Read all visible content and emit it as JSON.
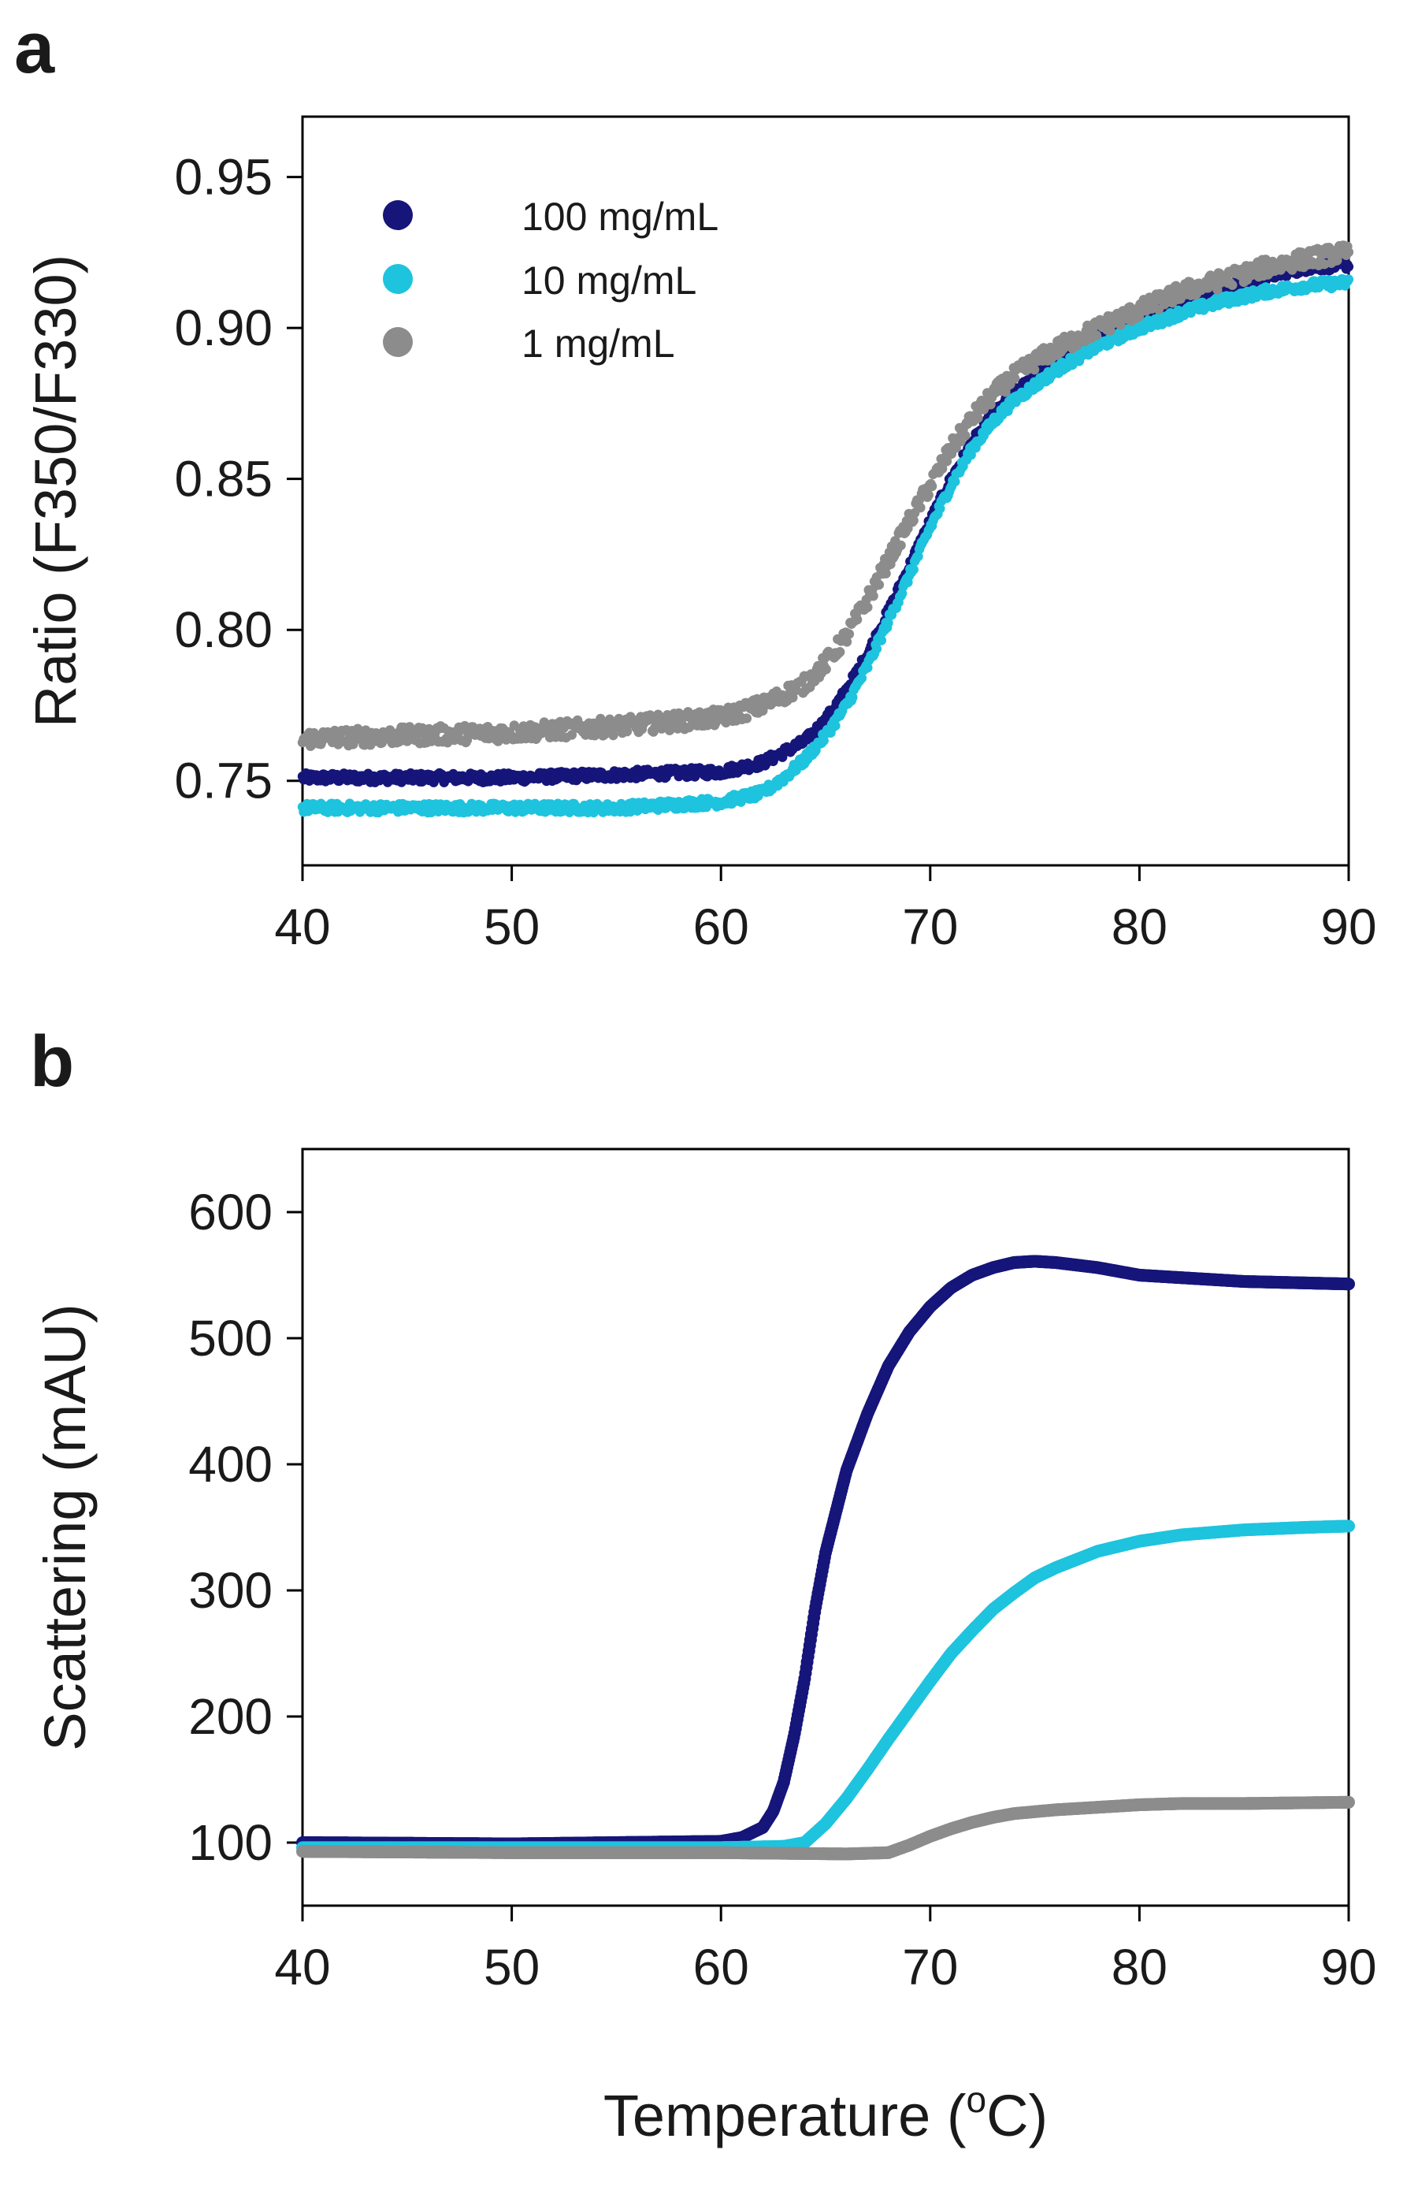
{
  "colors": {
    "c100": "#15157a",
    "c10": "#1ec3de",
    "c1": "#8c8c8c"
  },
  "chart_data": [
    {
      "panel": "a",
      "type": "scatter",
      "title": "",
      "xlabel": "",
      "ylabel": "Ratio (F350/F330)",
      "xlim": [
        40,
        90
      ],
      "ylim": [
        0.722,
        0.97
      ],
      "xticks": [
        "40",
        "50",
        "60",
        "70",
        "80",
        "90"
      ],
      "yticks": [
        "0.75",
        "0.80",
        "0.85",
        "0.90",
        "0.95"
      ],
      "legend_position": "top-left",
      "series": [
        {
          "name": "100 mg/mL",
          "color": "#15157a",
          "x": [
            40,
            45,
            50,
            55,
            60,
            62,
            64,
            65,
            66,
            67,
            68,
            69,
            70,
            71,
            72,
            73,
            74,
            75,
            76,
            78,
            80,
            82,
            84,
            86,
            88,
            90
          ],
          "y": [
            0.751,
            0.751,
            0.751,
            0.752,
            0.753,
            0.756,
            0.763,
            0.77,
            0.78,
            0.792,
            0.806,
            0.821,
            0.836,
            0.85,
            0.862,
            0.871,
            0.878,
            0.884,
            0.889,
            0.897,
            0.903,
            0.909,
            0.913,
            0.917,
            0.92,
            0.921
          ]
        },
        {
          "name": "10 mg/mL",
          "color": "#1ec3de",
          "x": [
            40,
            45,
            50,
            55,
            60,
            62,
            63,
            64,
            65,
            66,
            67,
            68,
            69,
            70,
            71,
            72,
            73,
            74,
            75,
            76,
            78,
            80,
            82,
            84,
            86,
            88,
            90
          ],
          "y": [
            0.741,
            0.741,
            0.741,
            0.741,
            0.743,
            0.746,
            0.751,
            0.757,
            0.765,
            0.775,
            0.788,
            0.803,
            0.818,
            0.834,
            0.848,
            0.86,
            0.869,
            0.876,
            0.881,
            0.886,
            0.894,
            0.9,
            0.905,
            0.909,
            0.912,
            0.914,
            0.915
          ]
        },
        {
          "name": "1 mg/mL",
          "color": "#8c8c8c",
          "x": [
            40,
            45,
            50,
            55,
            60,
            62,
            64,
            65,
            66,
            67,
            68,
            69,
            70,
            71,
            72,
            73,
            74,
            75,
            76,
            78,
            80,
            82,
            84,
            86,
            88,
            90
          ],
          "y": [
            0.764,
            0.765,
            0.766,
            0.768,
            0.771,
            0.775,
            0.782,
            0.789,
            0.798,
            0.81,
            0.823,
            0.836,
            0.848,
            0.86,
            0.87,
            0.878,
            0.884,
            0.889,
            0.893,
            0.9,
            0.906,
            0.912,
            0.916,
            0.92,
            0.923,
            0.925
          ]
        }
      ]
    },
    {
      "panel": "b",
      "type": "scatter",
      "title": "",
      "xlabel": "Temperature (°C)",
      "ylabel": "Scattering (mAU)",
      "xlim": [
        40,
        90
      ],
      "ylim": [
        50,
        650
      ],
      "xticks": [
        "40",
        "50",
        "60",
        "70",
        "80",
        "90"
      ],
      "yticks": [
        "100",
        "200",
        "300",
        "400",
        "500",
        "600"
      ],
      "series": [
        {
          "name": "100 mg/mL",
          "color": "#15157a",
          "x": [
            40,
            50,
            60,
            61,
            62,
            62.5,
            63,
            63.5,
            64,
            64.5,
            65,
            66,
            67,
            68,
            69,
            70,
            71,
            72,
            73,
            74,
            75,
            76,
            78,
            80,
            85,
            90
          ],
          "y": [
            100,
            99,
            101,
            104,
            112,
            125,
            148,
            185,
            230,
            285,
            330,
            395,
            440,
            478,
            505,
            525,
            540,
            550,
            556,
            560,
            561,
            560,
            556,
            550,
            545,
            543
          ]
        },
        {
          "name": "10 mg/mL",
          "color": "#1ec3de",
          "x": [
            40,
            50,
            60,
            63,
            64,
            65,
            66,
            67,
            68,
            69,
            70,
            71,
            72,
            73,
            74,
            75,
            76,
            78,
            80,
            82,
            85,
            88,
            90
          ],
          "y": [
            96,
            96,
            96,
            97,
            100,
            115,
            135,
            158,
            182,
            205,
            228,
            250,
            268,
            285,
            298,
            310,
            318,
            331,
            339,
            344,
            348,
            350,
            351
          ]
        },
        {
          "name": "1 mg/mL",
          "color": "#8c8c8c",
          "x": [
            40,
            50,
            60,
            66,
            68,
            69,
            70,
            71,
            72,
            73,
            74,
            76,
            78,
            80,
            82,
            85,
            90
          ],
          "y": [
            93,
            92,
            92,
            91,
            92,
            98,
            105,
            111,
            116,
            120,
            123,
            126,
            128,
            130,
            131,
            131,
            132
          ]
        }
      ]
    }
  ],
  "legend": [
    "100 mg/mL",
    "10 mg/mL",
    "1 mg/mL"
  ]
}
